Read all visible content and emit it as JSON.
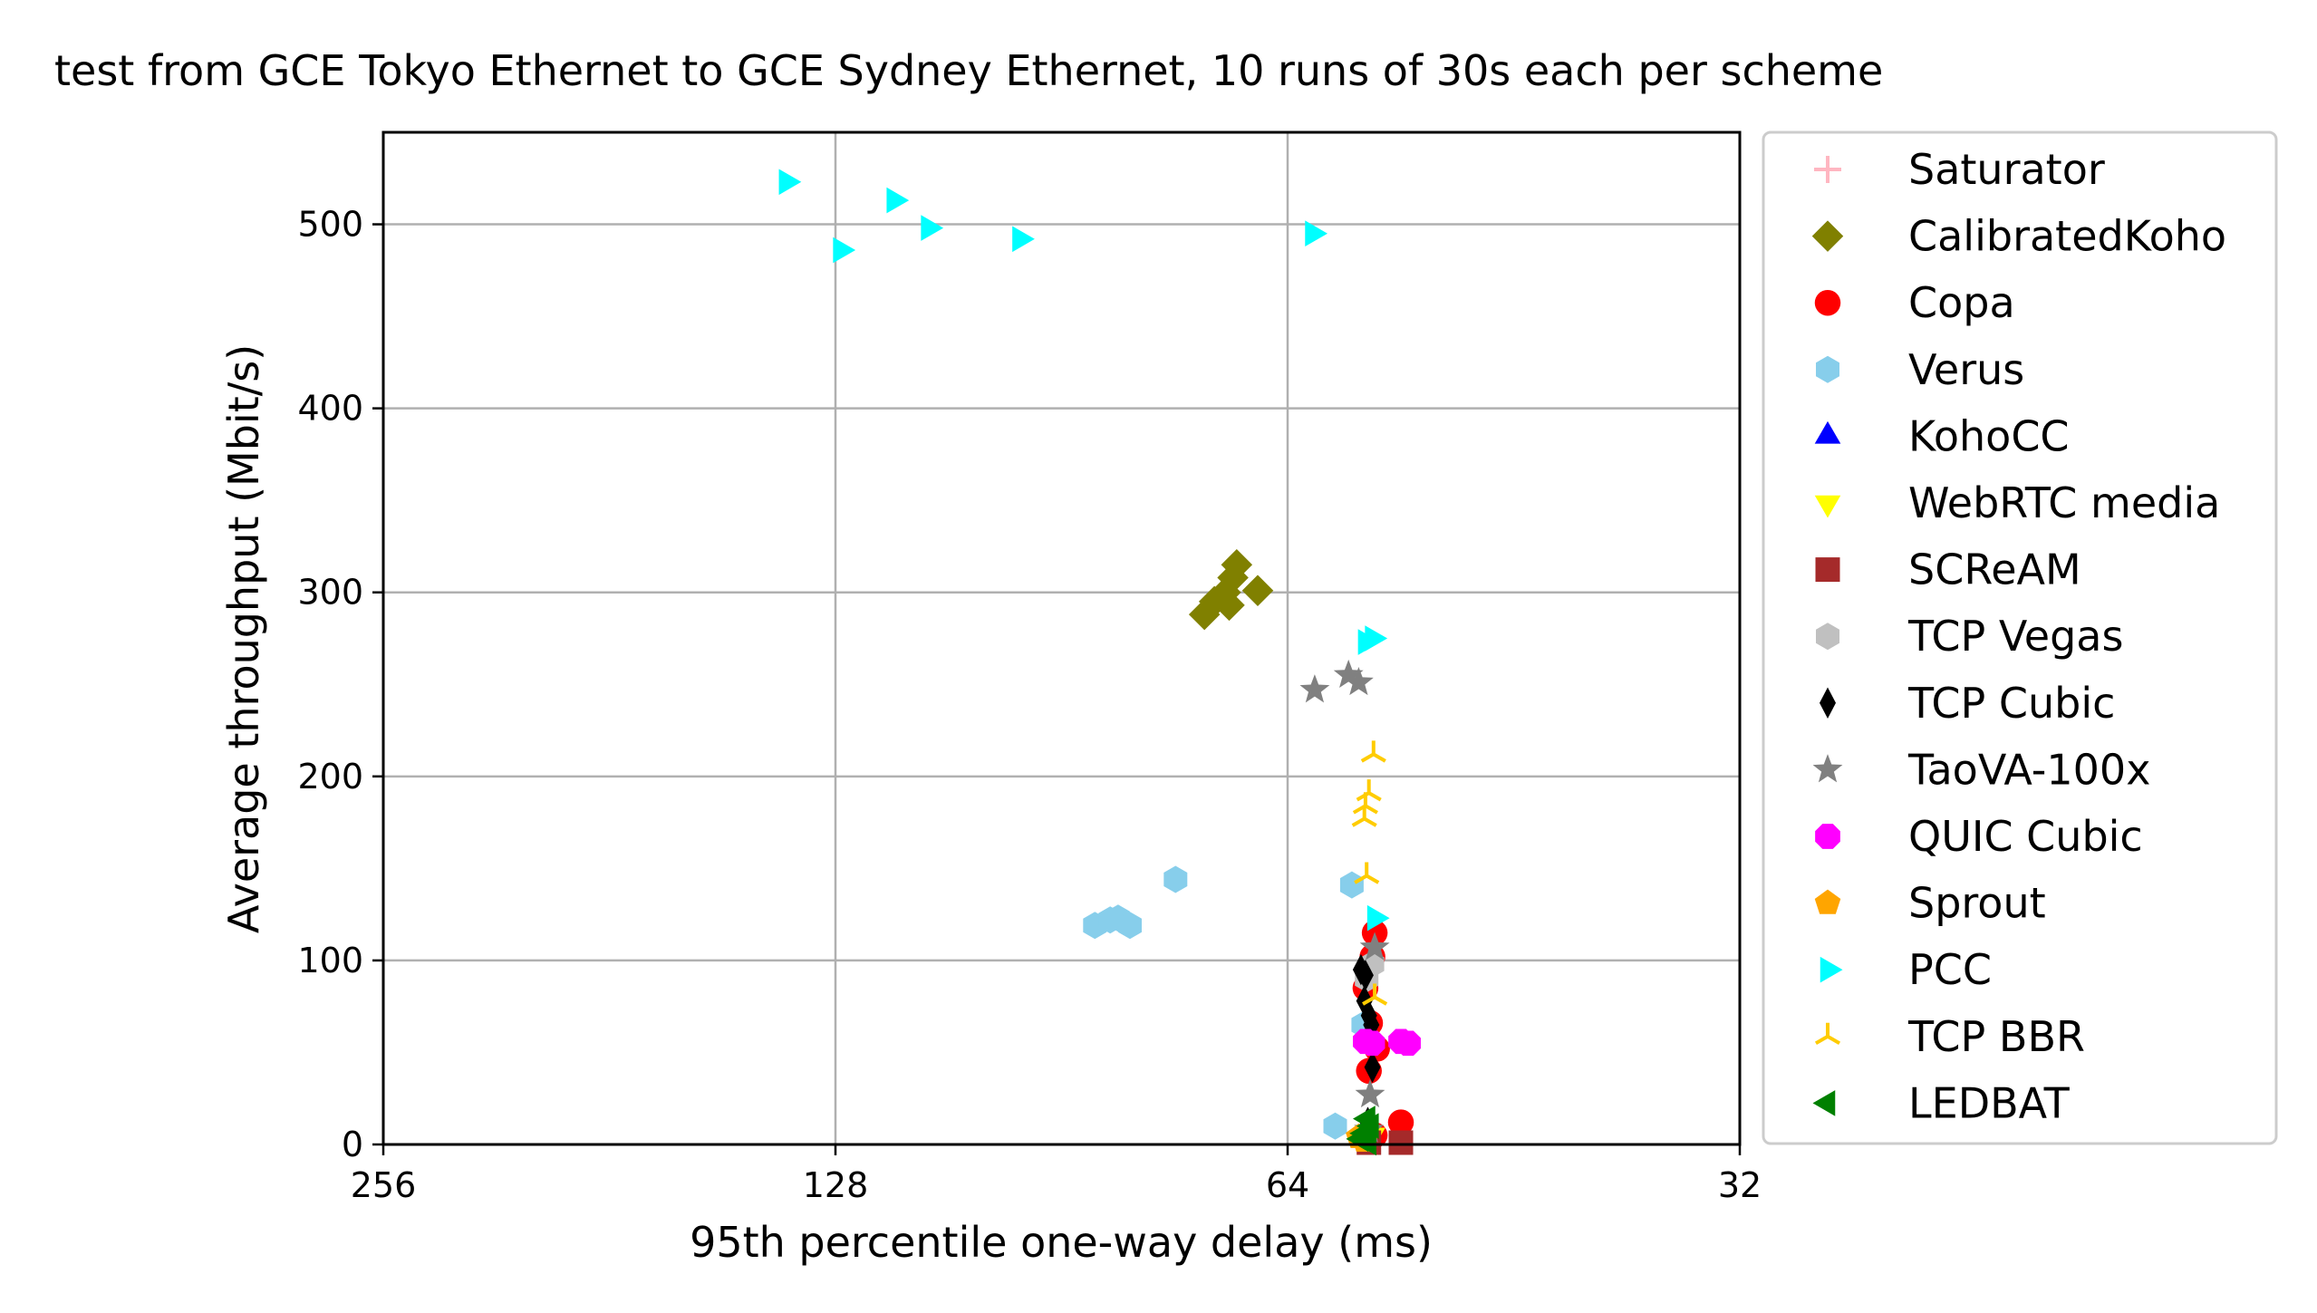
{
  "chart_data": {
    "type": "scatter",
    "title": "test from GCE Tokyo Ethernet to GCE Sydney Ethernet, 10 runs of 30s each per scheme",
    "xlabel": "95th percentile one-way delay (ms)",
    "ylabel": "Average throughput (Mbit/s)",
    "x_scale": "log2",
    "x_inverted": true,
    "xlim": [
      256,
      32
    ],
    "ylim": [
      0,
      550
    ],
    "xticks": [
      256,
      128,
      64,
      32
    ],
    "yticks": [
      0,
      100,
      200,
      300,
      400,
      500
    ],
    "grid": true,
    "legend_position": "outside-right",
    "series": [
      {
        "name": "Saturator",
        "marker": "plus",
        "color": "#ffb6c1",
        "points": []
      },
      {
        "name": "CalibratedKoho",
        "marker": "diamond",
        "color": "#808000",
        "points": [
          [
            72.7,
            288
          ],
          [
            71.6,
            295
          ],
          [
            70.4,
            300
          ],
          [
            69.6,
            308
          ],
          [
            69.2,
            315
          ],
          [
            70.0,
            293
          ],
          [
            67.0,
            301
          ]
        ]
      },
      {
        "name": "Copa",
        "marker": "circle",
        "color": "#ff0000",
        "points": [
          [
            56.0,
            115
          ],
          [
            56.2,
            102
          ],
          [
            56.8,
            85
          ],
          [
            56.4,
            66
          ],
          [
            55.8,
            52
          ],
          [
            56.5,
            40
          ],
          [
            53.8,
            12
          ],
          [
            56.0,
            5
          ]
        ]
      },
      {
        "name": "Verus",
        "marker": "hexagon",
        "color": "#87ceeb",
        "points": [
          [
            86.0,
            119
          ],
          [
            84.0,
            122
          ],
          [
            83.0,
            123
          ],
          [
            81.5,
            119
          ],
          [
            76.0,
            144
          ],
          [
            58.0,
            141
          ],
          [
            57.0,
            65
          ],
          [
            59.5,
            10
          ]
        ]
      },
      {
        "name": "KohoCC",
        "marker": "triangle-up",
        "color": "#0000ff",
        "points": [
          [
            56.5,
            10
          ],
          [
            57.0,
            6
          ]
        ]
      },
      {
        "name": "WebRTC media",
        "marker": "triangle-down",
        "color": "#ffff00",
        "points": [
          [
            56.2,
            5
          ],
          [
            57.2,
            3
          ]
        ]
      },
      {
        "name": "SCReAM",
        "marker": "square",
        "color": "#a52a2a",
        "points": [
          [
            56.5,
            1
          ],
          [
            53.8,
            1
          ]
        ]
      },
      {
        "name": "TCP Vegas",
        "marker": "hexagon",
        "color": "#c0c0c0",
        "points": [
          [
            56.2,
            98
          ],
          [
            56.7,
            90
          ]
        ]
      },
      {
        "name": "TCP Cubic",
        "marker": "thin-diamond",
        "color": "#000000",
        "points": [
          [
            57.2,
            95
          ],
          [
            56.8,
            92
          ],
          [
            56.9,
            78
          ],
          [
            56.5,
            70
          ],
          [
            56.3,
            65
          ],
          [
            56.2,
            42
          ],
          [
            56.6,
            12
          ]
        ]
      },
      {
        "name": "TaoVA-100x",
        "marker": "star",
        "color": "#808080",
        "points": [
          [
            61.4,
            247
          ],
          [
            58.3,
            255
          ],
          [
            57.4,
            251
          ],
          [
            56.0,
            107
          ],
          [
            56.4,
            27
          ],
          [
            56.5,
            8
          ]
        ]
      },
      {
        "name": "QUIC Cubic",
        "marker": "octagon",
        "color": "#ff00ff",
        "points": [
          [
            56.8,
            56
          ],
          [
            56.2,
            55
          ],
          [
            53.8,
            56
          ],
          [
            53.2,
            55
          ]
        ]
      },
      {
        "name": "Sprout",
        "marker": "pentagon",
        "color": "#ffa500",
        "points": [
          [
            57.4,
            4
          ],
          [
            56.9,
            2
          ]
        ]
      },
      {
        "name": "PCC",
        "marker": "triangle-right",
        "color": "#00ffff",
        "points": [
          [
            138,
            523
          ],
          [
            127,
            486
          ],
          [
            117,
            513
          ],
          [
            111,
            498
          ],
          [
            96.5,
            492
          ],
          [
            61.6,
            495
          ],
          [
            56.8,
            273
          ],
          [
            56.2,
            275
          ],
          [
            56.0,
            123
          ]
        ]
      },
      {
        "name": "TCP BBR",
        "marker": "tri-down",
        "color": "#ffcc00",
        "points": [
          [
            56.1,
            212
          ],
          [
            56.5,
            191
          ],
          [
            56.8,
            184
          ],
          [
            56.9,
            177
          ],
          [
            56.7,
            146
          ],
          [
            56.0,
            80
          ]
        ]
      },
      {
        "name": "LEDBAT",
        "marker": "triangle-left",
        "color": "#008000",
        "points": [
          [
            56.6,
            14
          ],
          [
            56.3,
            10
          ],
          [
            56.9,
            6
          ],
          [
            57.2,
            3
          ],
          [
            56.5,
            1
          ]
        ]
      }
    ]
  }
}
